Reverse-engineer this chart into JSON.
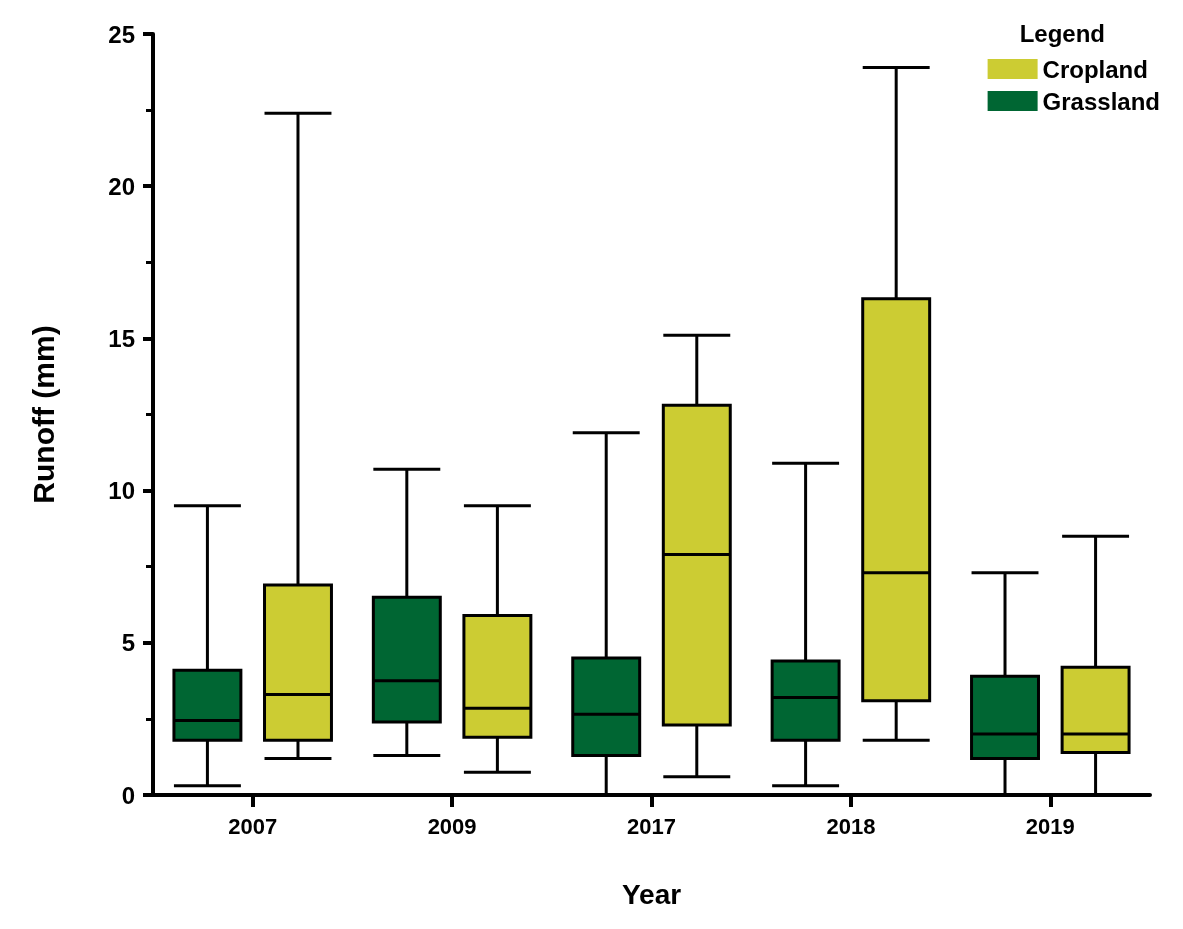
{
  "chart_data": {
    "type": "box",
    "xlabel": "Year",
    "ylabel": "Runoff (mm)",
    "legend_title": "Legend",
    "legend": "top right",
    "grid": false,
    "categories": [
      "2007",
      "2009",
      "2017",
      "2018",
      "2019"
    ],
    "ylim": [
      0,
      25
    ],
    "yticks": [
      0,
      5,
      10,
      15,
      20,
      25
    ],
    "series": [
      {
        "name": "Grassland",
        "color": "#006633",
        "boxes": [
          {
            "low": 0.3,
            "q1": 1.8,
            "median": 2.45,
            "q3": 4.1,
            "high": 9.5
          },
          {
            "low": 1.3,
            "q1": 2.4,
            "median": 3.75,
            "q3": 6.5,
            "high": 10.7
          },
          {
            "low": 0,
            "q1": 1.3,
            "median": 2.65,
            "q3": 4.5,
            "high": 11.9
          },
          {
            "low": 0.3,
            "q1": 1.8,
            "median": 3.2,
            "q3": 4.4,
            "high": 10.9
          },
          {
            "low": 0,
            "q1": 1.2,
            "median": 2.0,
            "q3": 3.9,
            "high": 7.3
          }
        ]
      },
      {
        "name": "Cropland",
        "color": "#cccc33",
        "boxes": [
          {
            "low": 1.2,
            "q1": 1.8,
            "median": 3.3,
            "q3": 6.9,
            "high": 22.4
          },
          {
            "low": 0.75,
            "q1": 1.9,
            "median": 2.85,
            "q3": 5.9,
            "high": 9.5
          },
          {
            "low": 0.6,
            "q1": 2.3,
            "median": 7.9,
            "q3": 12.8,
            "high": 15.1
          },
          {
            "low": 1.8,
            "q1": 3.1,
            "median": 7.3,
            "q3": 16.3,
            "high": 23.9
          },
          {
            "low": 0,
            "q1": 1.4,
            "median": 2.0,
            "q3": 4.2,
            "high": 8.5
          }
        ]
      }
    ]
  }
}
